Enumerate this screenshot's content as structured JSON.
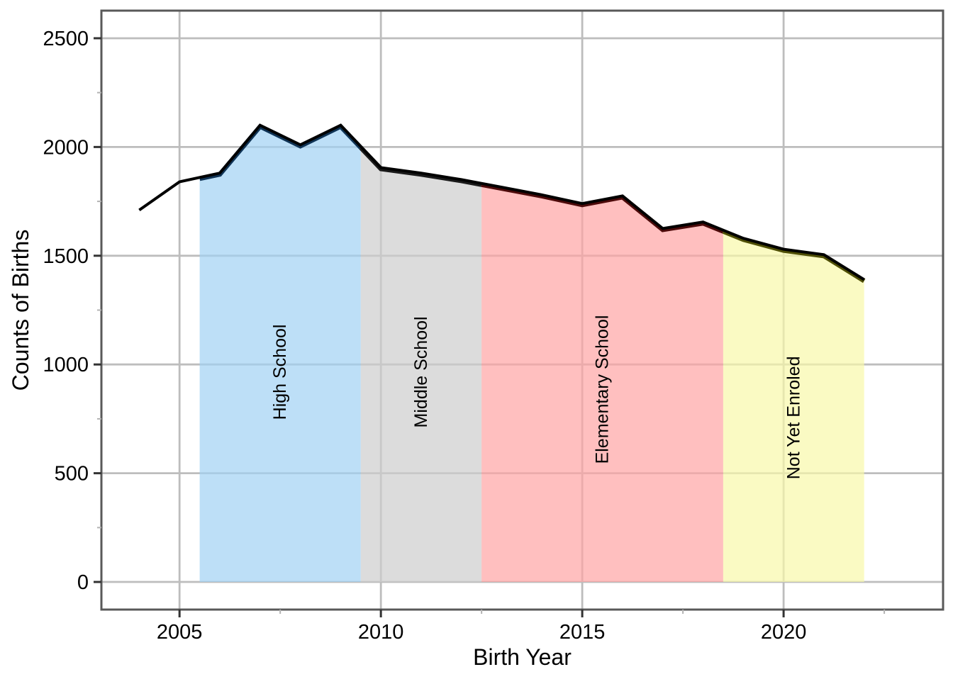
{
  "chart_data": {
    "type": "area",
    "title": "",
    "xlabel": "Birth Year",
    "ylabel": "Counts of Births",
    "x": [
      2004,
      2005,
      2006,
      2007,
      2008,
      2009,
      2010,
      2011,
      2012,
      2013,
      2014,
      2015,
      2016,
      2017,
      2018,
      2019,
      2020,
      2021,
      2022
    ],
    "values": [
      1710,
      1840,
      1880,
      2100,
      2010,
      2100,
      1905,
      1880,
      1850,
      1815,
      1780,
      1740,
      1775,
      1625,
      1655,
      1580,
      1530,
      1505,
      1390
    ],
    "x_ticks": [
      2005,
      2010,
      2015,
      2020
    ],
    "y_ticks": [
      0,
      500,
      1000,
      1500,
      2000,
      2500
    ],
    "xlim": [
      2003.06,
      2023.96
    ],
    "ylim": [
      -127,
      2627
    ],
    "grid": true,
    "legend": "none",
    "line_color": "#000000",
    "grid_color": "#BDBDBD",
    "panel_border_color": "#595959",
    "panel_bg": "#FFFFFF",
    "tick_color": "#333333",
    "minor_tick_color": "#B3B3B3",
    "text_color": "#000000",
    "regions": [
      {
        "label": "High School",
        "start": 2005.5,
        "end": 2009.5,
        "fill": "#A1D1F4",
        "fill_opacity": 0.7,
        "edge": "#0F3355",
        "label_v": 965
      },
      {
        "label": "Middle School",
        "start": 2009.5,
        "end": 2012.5,
        "fill": "#CDCDCD",
        "fill_opacity": 0.7,
        "edge": "#1A1A1A",
        "label_v": 965
      },
      {
        "label": "Elementary School",
        "start": 2012.5,
        "end": 2018.5,
        "fill": "#FFA4A4",
        "fill_opacity": 0.7,
        "edge": "#4D0A0A",
        "label_v": 885
      },
      {
        "label": "Not Yet Enroled",
        "start": 2018.5,
        "end": 2022.0,
        "fill": "#F8F8A9",
        "fill_opacity": 0.7,
        "edge": "#4F4F05",
        "label_v": 755
      }
    ]
  }
}
